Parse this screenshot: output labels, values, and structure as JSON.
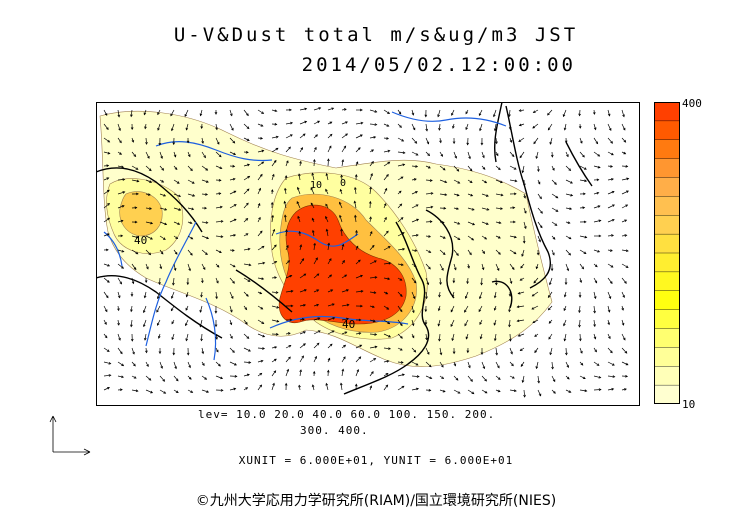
{
  "header": {
    "title_line1": "U-V&Dust total m/s&ug/m3 JST",
    "title_line2": "2014/05/02.12:00:00"
  },
  "legend": {
    "max_label": "400",
    "min_label": "10",
    "colors": [
      "#ff4000",
      "#ff5a00",
      "#ff7a10",
      "#ff9630",
      "#ffae48",
      "#ffc050",
      "#ffd050",
      "#ffe040",
      "#ffee30",
      "#fff820",
      "#ffff10",
      "#ffff40",
      "#ffff70",
      "#ffff98",
      "#ffffb8",
      "#ffffd0"
    ]
  },
  "contour_labels": {
    "label_a": "40",
    "label_b": "40",
    "label_c": "10",
    "label_d": "0"
  },
  "footer": {
    "levels_line1": "lev= 10.0 20.0 40.0 60.0 100. 150. 200.",
    "levels_line2": "300. 400.",
    "unit_line": "XUNIT = 6.000E+01, YUNIT = 6.000E+01",
    "credit": "©九州大学応用力学研究所(RIAM)/国立環境研究所(NIES)"
  },
  "colors": {
    "coast": "#000000",
    "river": "#1e60e0",
    "dust_high": "#ff4000",
    "dust_mid": "#ffb040",
    "dust_low": "#ffff99",
    "dust_faint": "#ffffcc"
  }
}
